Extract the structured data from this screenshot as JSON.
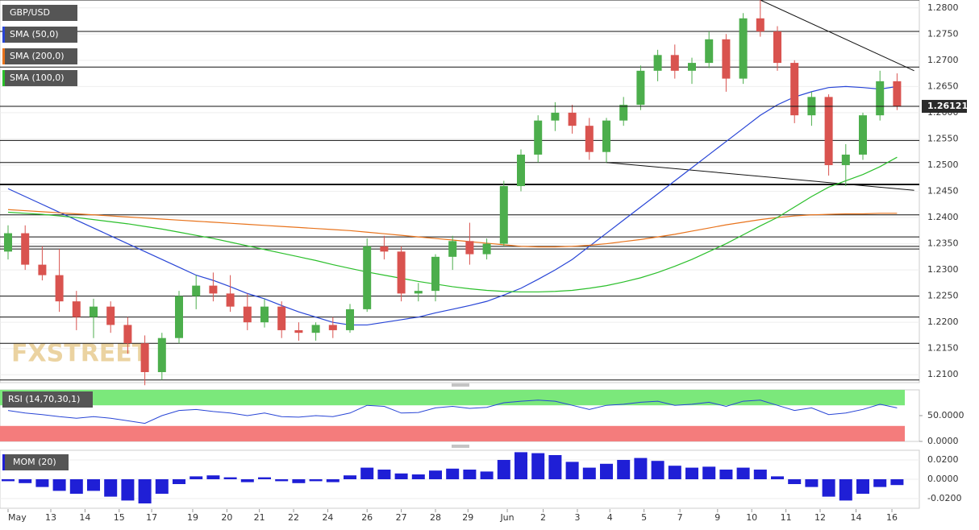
{
  "chart_data": [
    {
      "type": "candlestick",
      "symbol": "GBP/USD",
      "up_color": "#4cae4c",
      "down_color": "#d9534f",
      "ohlc": [
        [
          1.2335,
          1.2385,
          1.232,
          1.237
        ],
        [
          1.237,
          1.2385,
          1.23,
          1.231
        ],
        [
          1.231,
          1.2345,
          1.228,
          1.229
        ],
        [
          1.229,
          1.234,
          1.222,
          1.224
        ],
        [
          1.224,
          1.226,
          1.2185,
          1.221
        ],
        [
          1.221,
          1.2245,
          1.217,
          1.223
        ],
        [
          1.223,
          1.224,
          1.218,
          1.2195
        ],
        [
          1.2195,
          1.221,
          1.214,
          1.216
        ],
        [
          1.216,
          1.2175,
          1.208,
          1.2105
        ],
        [
          1.2105,
          1.218,
          1.209,
          1.217
        ],
        [
          1.217,
          1.226,
          1.216,
          1.225
        ],
        [
          1.225,
          1.229,
          1.2225,
          1.227
        ],
        [
          1.227,
          1.2295,
          1.224,
          1.2255
        ],
        [
          1.2255,
          1.229,
          1.222,
          1.223
        ],
        [
          1.223,
          1.2255,
          1.2185,
          1.22
        ],
        [
          1.22,
          1.2245,
          1.219,
          1.223
        ],
        [
          1.223,
          1.224,
          1.217,
          1.2185
        ],
        [
          1.2185,
          1.22,
          1.2165,
          1.218
        ],
        [
          1.218,
          1.22,
          1.2165,
          1.2195
        ],
        [
          1.2195,
          1.221,
          1.217,
          1.2185
        ],
        [
          1.2185,
          1.2235,
          1.218,
          1.2225
        ],
        [
          1.2225,
          1.236,
          1.222,
          1.2345
        ],
        [
          1.2345,
          1.2365,
          1.232,
          1.2335
        ],
        [
          1.2335,
          1.2345,
          1.224,
          1.2255
        ],
        [
          1.2255,
          1.2275,
          1.224,
          1.226
        ],
        [
          1.226,
          1.233,
          1.224,
          1.2325
        ],
        [
          1.2325,
          1.2365,
          1.23,
          1.2355
        ],
        [
          1.2355,
          1.239,
          1.231,
          1.233
        ],
        [
          1.233,
          1.236,
          1.232,
          1.235
        ],
        [
          1.235,
          1.247,
          1.2345,
          1.246
        ],
        [
          1.246,
          1.253,
          1.245,
          1.252
        ],
        [
          1.252,
          1.2595,
          1.2505,
          1.2585
        ],
        [
          1.2585,
          1.262,
          1.2565,
          1.26
        ],
        [
          1.26,
          1.2615,
          1.256,
          1.2575
        ],
        [
          1.2575,
          1.259,
          1.251,
          1.2525
        ],
        [
          1.2525,
          1.259,
          1.2505,
          1.2585
        ],
        [
          1.2585,
          1.263,
          1.2575,
          1.2615
        ],
        [
          1.2615,
          1.269,
          1.2605,
          1.268
        ],
        [
          1.268,
          1.272,
          1.266,
          1.271
        ],
        [
          1.271,
          1.273,
          1.2665,
          1.268
        ],
        [
          1.268,
          1.2705,
          1.2655,
          1.2695
        ],
        [
          1.2695,
          1.2755,
          1.2685,
          1.274
        ],
        [
          1.274,
          1.275,
          1.264,
          1.2665
        ],
        [
          1.2665,
          1.279,
          1.2655,
          1.278
        ],
        [
          1.278,
          1.2815,
          1.2745,
          1.2755
        ],
        [
          1.2755,
          1.2765,
          1.268,
          1.2695
        ],
        [
          1.2695,
          1.27,
          1.258,
          1.2595
        ],
        [
          1.2595,
          1.264,
          1.2575,
          1.263
        ],
        [
          1.263,
          1.2635,
          1.248,
          1.25
        ],
        [
          1.25,
          1.254,
          1.246,
          1.252
        ],
        [
          1.252,
          1.26,
          1.251,
          1.2595
        ],
        [
          1.2595,
          1.268,
          1.2585,
          1.266
        ],
        [
          1.266,
          1.2675,
          1.2605,
          1.2612
        ]
      ],
      "series": [
        {
          "name": "SMA (50,0)",
          "color": "#2845d6",
          "values": [
            1.2455,
            1.244,
            1.2425,
            1.241,
            1.2395,
            1.238,
            1.2365,
            1.235,
            1.2335,
            1.232,
            1.2305,
            1.229,
            1.228,
            1.2268,
            1.2255,
            1.2245,
            1.2232,
            1.222,
            1.221,
            1.22,
            1.2195,
            1.2195,
            1.22,
            1.2205,
            1.221,
            1.2218,
            1.2225,
            1.2232,
            1.224,
            1.2252,
            1.2265,
            1.2282,
            1.23,
            1.232,
            1.2345,
            1.237,
            1.2395,
            1.242,
            1.2445,
            1.247,
            1.2495,
            1.252,
            1.2545,
            1.257,
            1.2595,
            1.2615,
            1.263,
            1.264,
            1.2648,
            1.265,
            1.2648,
            1.2645,
            1.265
          ]
        },
        {
          "name": "SMA (200,0)",
          "color": "#e8731c",
          "values": [
            1.2415,
            1.2413,
            1.2411,
            1.2409,
            1.2407,
            1.2405,
            1.2403,
            1.2401,
            1.2399,
            1.2397,
            1.2395,
            1.2393,
            1.2391,
            1.2389,
            1.2387,
            1.2385,
            1.2383,
            1.2381,
            1.2379,
            1.2377,
            1.2375,
            1.2372,
            1.2369,
            1.2366,
            1.2363,
            1.236,
            1.2357,
            1.2354,
            1.2351,
            1.2348,
            1.2345,
            1.2344,
            1.2344,
            1.2345,
            1.2347,
            1.235,
            1.2354,
            1.2358,
            1.2363,
            1.2368,
            1.2374,
            1.238,
            1.2386,
            1.2391,
            1.2396,
            1.24,
            1.2403,
            1.2405,
            1.2406,
            1.2407,
            1.2407,
            1.2408,
            1.2408
          ]
        },
        {
          "name": "SMA (100,0)",
          "color": "#2bbf2b",
          "values": [
            1.241,
            1.2408,
            1.2406,
            1.2403,
            1.24,
            1.2396,
            1.2392,
            1.2388,
            1.2383,
            1.2378,
            1.2372,
            1.2366,
            1.236,
            1.2353,
            1.2346,
            1.2339,
            1.2332,
            1.2325,
            1.2318,
            1.231,
            1.2303,
            1.2296,
            1.229,
            1.2284,
            1.2278,
            1.2273,
            1.2268,
            1.2264,
            1.2261,
            1.2259,
            1.2258,
            1.2258,
            1.2259,
            1.2261,
            1.2265,
            1.227,
            1.2277,
            1.2285,
            1.2295,
            1.2307,
            1.232,
            1.2335,
            1.235,
            1.2367,
            1.2384,
            1.24,
            1.242,
            1.244,
            1.2458,
            1.247,
            1.2482,
            1.2497,
            1.2515
          ]
        }
      ],
      "levels": [
        1.2815,
        1.2755,
        1.2687,
        1.2547,
        1.2505,
        1.2463,
        1.2405,
        1.2363,
        1.2345,
        1.234,
        1.225,
        1.221,
        1.216,
        1.209
      ],
      "trendlines": [
        [
          [
            44,
            1.2815
          ],
          [
            53,
            1.268
          ]
        ],
        [
          [
            35,
            1.2505
          ],
          [
            53,
            1.2452
          ]
        ]
      ],
      "last_price": 1.26121,
      "watermark": "FXSTREET",
      "ylim": [
        1.2085,
        1.2815
      ],
      "yticks": [
        {
          "value": 1.28,
          "label": "1.2800"
        },
        {
          "value": 1.275,
          "label": "1.2750"
        },
        {
          "value": 1.27,
          "label": "1.2700"
        },
        {
          "value": 1.265,
          "label": "1.2650"
        },
        {
          "value": 1.26,
          "label": "1.2600"
        },
        {
          "value": 1.255,
          "label": "1.2550"
        },
        {
          "value": 1.25,
          "label": "1.2500"
        },
        {
          "value": 1.245,
          "label": "1.2450"
        },
        {
          "value": 1.24,
          "label": "1.2400"
        },
        {
          "value": 1.235,
          "label": "1.2350"
        },
        {
          "value": 1.23,
          "label": "1.2300"
        },
        {
          "value": 1.225,
          "label": "1.2250"
        },
        {
          "value": 1.22,
          "label": "1.2200"
        },
        {
          "value": 1.215,
          "label": "1.2150"
        },
        {
          "value": 1.21,
          "label": "1.2100"
        }
      ]
    },
    {
      "type": "line",
      "name": "RSI (14,70,30,1)",
      "color": "#2845d6",
      "overbought": 70,
      "oversold": 30,
      "values": [
        60,
        55,
        52,
        48,
        45,
        48,
        45,
        40,
        35,
        50,
        60,
        62,
        58,
        55,
        50,
        55,
        48,
        47,
        50,
        48,
        55,
        70,
        68,
        55,
        56,
        65,
        68,
        64,
        66,
        75,
        78,
        80,
        78,
        70,
        62,
        70,
        72,
        76,
        78,
        70,
        72,
        76,
        68,
        78,
        80,
        70,
        60,
        65,
        52,
        55,
        62,
        72,
        65
      ],
      "ylim": [
        0,
        100
      ],
      "yticks": [
        {
          "value": 50,
          "label": "50.0000"
        },
        {
          "value": 0,
          "label": "0.0000"
        }
      ]
    },
    {
      "type": "bar",
      "name": "MOM (20)",
      "color": "#1f1fd6",
      "values": [
        -0.002,
        -0.004,
        -0.008,
        -0.012,
        -0.015,
        -0.012,
        -0.018,
        -0.022,
        -0.025,
        -0.015,
        -0.005,
        0.003,
        0.004,
        0.002,
        -0.003,
        0.002,
        -0.002,
        -0.004,
        -0.002,
        -0.003,
        0.004,
        0.012,
        0.01,
        0.006,
        0.005,
        0.009,
        0.011,
        0.01,
        0.008,
        0.02,
        0.028,
        0.027,
        0.025,
        0.018,
        0.012,
        0.016,
        0.02,
        0.022,
        0.019,
        0.014,
        0.012,
        0.013,
        0.01,
        0.012,
        0.01,
        0.003,
        -0.005,
        -0.008,
        -0.018,
        -0.022,
        -0.015,
        -0.008,
        -0.006
      ],
      "ylim": [
        -0.03,
        0.03
      ],
      "yticks": [
        {
          "value": 0.02,
          "label": "0.0200"
        },
        {
          "value": 0,
          "label": "0.0000"
        },
        {
          "value": -0.02,
          "label": "-0.0200"
        }
      ],
      "xticks": [
        {
          "value": 0,
          "label": "May"
        },
        {
          "value": 2.5,
          "label": "13"
        },
        {
          "value": 4.5,
          "label": "14"
        },
        {
          "value": 6.5,
          "label": "15"
        },
        {
          "value": 8.4,
          "label": "17"
        },
        {
          "value": 10.8,
          "label": "19"
        },
        {
          "value": 12.8,
          "label": "20"
        },
        {
          "value": 14.7,
          "label": "21"
        },
        {
          "value": 16.7,
          "label": "22"
        },
        {
          "value": 18.7,
          "label": "24"
        },
        {
          "value": 21,
          "label": "26"
        },
        {
          "value": 23,
          "label": "27"
        },
        {
          "value": 25,
          "label": "28"
        },
        {
          "value": 26.9,
          "label": "29"
        },
        {
          "value": 29.2,
          "label": "Jun"
        },
        {
          "value": 31.3,
          "label": "2"
        },
        {
          "value": 33.3,
          "label": "3"
        },
        {
          "value": 35.2,
          "label": "4"
        },
        {
          "value": 37.2,
          "label": "5"
        },
        {
          "value": 39.3,
          "label": "7"
        },
        {
          "value": 41.5,
          "label": "9"
        },
        {
          "value": 43.5,
          "label": "10"
        },
        {
          "value": 45.5,
          "label": "11"
        },
        {
          "value": 47.5,
          "label": "12"
        },
        {
          "value": 49.6,
          "label": "14"
        },
        {
          "value": 51.7,
          "label": "16"
        }
      ]
    }
  ]
}
